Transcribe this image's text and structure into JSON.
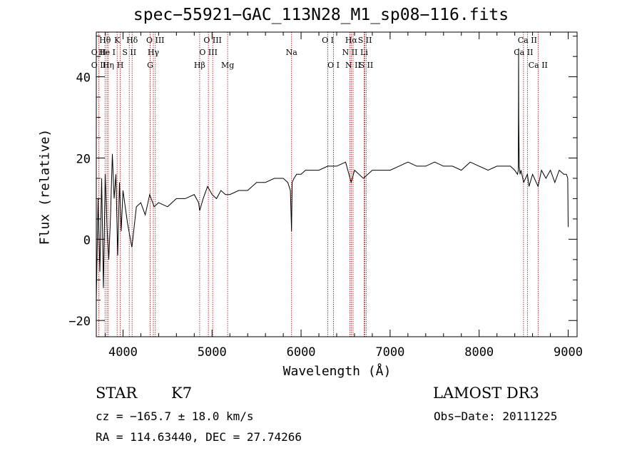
{
  "chart_data": {
    "type": "line",
    "title": "spec−55921−GAC_113N28_M1_sp08−116.fits",
    "xlabel": "Wavelength (Å)",
    "ylabel": "Flux (relative)",
    "xlim": [
      3700,
      9100
    ],
    "ylim": [
      -24,
      51
    ],
    "x_ticks": [
      4000,
      5000,
      6000,
      7000,
      8000,
      9000
    ],
    "x_tick_labels": [
      "4000",
      "5000",
      "6000",
      "7000",
      "8000",
      "9000"
    ],
    "y_ticks": [
      -20,
      0,
      20,
      40
    ],
    "y_tick_labels": [
      "−20",
      "0",
      "20",
      "40"
    ],
    "series": [
      {
        "name": "flux",
        "x": [
          3700,
          3720,
          3740,
          3760,
          3780,
          3800,
          3820,
          3840,
          3860,
          3880,
          3900,
          3920,
          3940,
          3960,
          3980,
          4000,
          4050,
          4100,
          4150,
          4200,
          4250,
          4300,
          4350,
          4400,
          4500,
          4600,
          4700,
          4800,
          4850,
          4861,
          4900,
          4950,
          5000,
          5050,
          5100,
          5150,
          5200,
          5300,
          5400,
          5500,
          5600,
          5700,
          5800,
          5850,
          5880,
          5893,
          5900,
          5920,
          5950,
          6000,
          6050,
          6100,
          6200,
          6300,
          6400,
          6500,
          6563,
          6600,
          6700,
          6800,
          6900,
          7000,
          7100,
          7200,
          7300,
          7400,
          7500,
          7600,
          7700,
          7800,
          7900,
          8000,
          8100,
          8200,
          8300,
          8350,
          8400,
          8430,
          8440,
          8443,
          8445,
          8450,
          8460,
          8470,
          8500,
          8542,
          8560,
          8600,
          8662,
          8700,
          8750,
          8800,
          8850,
          8900,
          8950,
          8980,
          8995,
          9000
        ],
        "y": [
          -15,
          10,
          -8,
          15,
          -12,
          16,
          3,
          -5,
          6,
          21,
          10,
          16,
          -4,
          14,
          2,
          12,
          4,
          -2,
          8,
          9,
          6,
          11,
          8,
          9,
          8,
          10,
          10,
          11,
          9,
          7,
          10,
          13,
          11,
          10,
          12,
          11,
          11,
          12,
          12,
          14,
          14,
          15,
          15,
          14,
          12,
          2,
          14,
          15,
          16,
          16,
          17,
          17,
          17,
          18,
          18,
          19,
          14,
          17,
          15,
          17,
          17,
          17,
          18,
          19,
          18,
          18,
          19,
          18,
          18,
          17,
          19,
          18,
          17,
          18,
          18,
          18,
          17,
          16,
          17,
          47,
          30,
          18,
          16,
          17,
          14,
          16,
          13,
          16,
          13,
          17,
          15,
          17,
          14,
          17,
          16,
          16,
          15,
          3
        ]
      }
    ],
    "spectral_lines": [
      {
        "label": "O II",
        "wavelength": 3727,
        "row": 2
      },
      {
        "label": "Hθ",
        "wavelength": 3798,
        "row": 0
      },
      {
        "label": "O II",
        "wavelength": 3727,
        "row": 1
      },
      {
        "label": "He I",
        "wavelength": 3820,
        "row": 1
      },
      {
        "label": "Hη",
        "wavelength": 3835,
        "row": 2
      },
      {
        "label": "K",
        "wavelength": 3934,
        "row": 0
      },
      {
        "label": "S II",
        "wavelength": 4070,
        "row": 1
      },
      {
        "label": "H",
        "wavelength": 3969,
        "row": 2
      },
      {
        "label": "Hδ",
        "wavelength": 4102,
        "row": 0
      },
      {
        "label": "O III",
        "wavelength": 4363,
        "row": 0
      },
      {
        "label": "Hγ",
        "wavelength": 4341,
        "row": 1
      },
      {
        "label": "G",
        "wavelength": 4305,
        "row": 2
      },
      {
        "label": "Hβ",
        "wavelength": 4861,
        "row": 2
      },
      {
        "label": "O III",
        "wavelength": 5007,
        "row": 0
      },
      {
        "label": "O III",
        "wavelength": 4959,
        "row": 1
      },
      {
        "label": "Mg",
        "wavelength": 5175,
        "row": 2
      },
      {
        "label": "Na",
        "wavelength": 5893,
        "row": 1
      },
      {
        "label": "O I",
        "wavelength": 6300,
        "row": 0
      },
      {
        "label": "O I",
        "wavelength": 6364,
        "row": 2
      },
      {
        "label": "Hα",
        "wavelength": 6563,
        "row": 0
      },
      {
        "label": "N II",
        "wavelength": 6548,
        "row": 1
      },
      {
        "label": "N II",
        "wavelength": 6584,
        "row": 2
      },
      {
        "label": "S II",
        "wavelength": 6717,
        "row": 0
      },
      {
        "label": "Li",
        "wavelength": 6708,
        "row": 1
      },
      {
        "label": "S II",
        "wavelength": 6731,
        "row": 2
      },
      {
        "label": "Ca II",
        "wavelength": 8542,
        "row": 0
      },
      {
        "label": "Ca II",
        "wavelength": 8498,
        "row": 1
      },
      {
        "label": "Ca II",
        "wavelength": 8662,
        "row": 2
      }
    ]
  },
  "info": {
    "object_class": "STAR",
    "object_subclass": "K7",
    "survey": "LAMOST DR3",
    "cz": "cz = −165.7 ± 18.0 km/s",
    "obs_date": "Obs−Date: 20111225",
    "radec": "RA = 114.63440, DEC =  27.74266"
  }
}
